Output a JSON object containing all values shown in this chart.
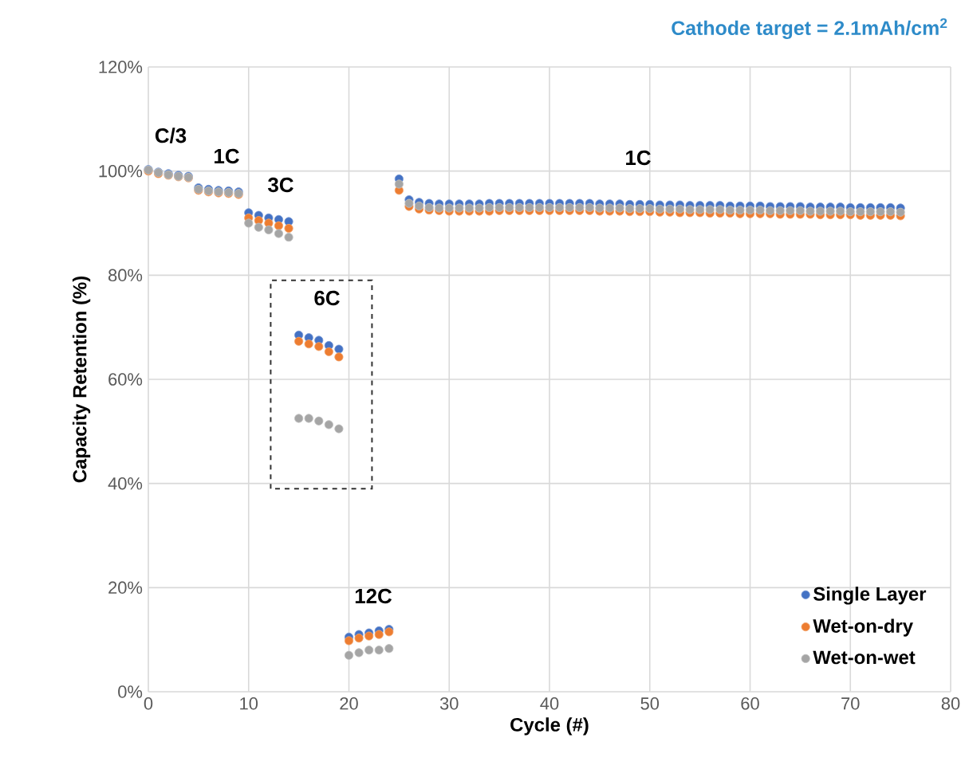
{
  "chart_data": {
    "type": "scatter",
    "title": "Cathode target = 2.1mAh/cm$^{2}$",
    "xlabel": "Cycle (#)",
    "ylabel": "Capacity Retention (%)",
    "x": [
      0,
      1,
      2,
      3,
      4,
      5,
      6,
      7,
      8,
      9,
      10,
      11,
      12,
      13,
      14,
      15,
      16,
      17,
      18,
      19,
      20,
      21,
      22,
      23,
      24,
      25,
      26,
      27,
      28,
      29,
      30,
      31,
      32,
      33,
      34,
      35,
      36,
      37,
      38,
      39,
      40,
      41,
      42,
      43,
      44,
      45,
      46,
      47,
      48,
      49,
      50,
      51,
      52,
      53,
      54,
      55,
      56,
      57,
      58,
      59,
      60,
      61,
      62,
      63,
      64,
      65,
      66,
      67,
      68,
      69,
      70,
      71,
      72,
      73,
      74,
      75
    ],
    "series": [
      {
        "name": "Single Layer",
        "color": "#4472c4",
        "values": [
          100.3,
          99.8,
          99.5,
          99.2,
          99.0,
          96.8,
          96.5,
          96.3,
          96.2,
          96.0,
          92.0,
          91.5,
          91.0,
          90.7,
          90.3,
          68.5,
          68.0,
          67.5,
          66.5,
          65.8,
          10.5,
          11.0,
          11.3,
          11.7,
          12.0,
          98.5,
          94.5,
          94.0,
          93.8,
          93.7,
          93.7,
          93.7,
          93.7,
          93.7,
          93.8,
          93.8,
          93.8,
          93.8,
          93.8,
          93.8,
          93.8,
          93.8,
          93.8,
          93.8,
          93.8,
          93.7,
          93.7,
          93.7,
          93.6,
          93.6,
          93.6,
          93.5,
          93.5,
          93.5,
          93.4,
          93.4,
          93.4,
          93.4,
          93.3,
          93.3,
          93.3,
          93.3,
          93.2,
          93.2,
          93.2,
          93.2,
          93.1,
          93.1,
          93.1,
          93.1,
          93.0,
          93.0,
          93.0,
          93.0,
          93.0,
          92.9
        ]
      },
      {
        "name": "Wet-on-dry",
        "color": "#ed7d31",
        "values": [
          100.0,
          99.5,
          99.2,
          98.9,
          98.7,
          96.3,
          96.0,
          95.8,
          95.7,
          95.5,
          91.0,
          90.5,
          90.0,
          89.5,
          89.0,
          67.3,
          66.8,
          66.3,
          65.3,
          64.3,
          9.8,
          10.3,
          10.7,
          11.0,
          11.5,
          96.3,
          93.2,
          92.7,
          92.5,
          92.4,
          92.3,
          92.3,
          92.3,
          92.3,
          92.3,
          92.4,
          92.4,
          92.4,
          92.4,
          92.4,
          92.4,
          92.4,
          92.4,
          92.4,
          92.4,
          92.3,
          92.3,
          92.3,
          92.2,
          92.2,
          92.2,
          92.1,
          92.1,
          92.0,
          92.0,
          92.0,
          91.9,
          91.9,
          91.9,
          91.8,
          91.8,
          91.8,
          91.8,
          91.7,
          91.7,
          91.7,
          91.7,
          91.6,
          91.6,
          91.6,
          91.6,
          91.5,
          91.5,
          91.5,
          91.5,
          91.4
        ]
      },
      {
        "name": "Wet-on-wet",
        "color": "#a5a5a5",
        "values": [
          100.2,
          99.7,
          99.3,
          99.0,
          98.8,
          96.5,
          96.2,
          96.0,
          95.9,
          95.7,
          90.0,
          89.2,
          88.7,
          88.0,
          87.3,
          52.5,
          52.5,
          52.0,
          51.3,
          50.5,
          7.0,
          7.5,
          8.0,
          8.0,
          8.3,
          97.5,
          93.8,
          93.3,
          93.0,
          92.9,
          92.9,
          92.9,
          92.9,
          92.9,
          93.0,
          93.0,
          93.0,
          93.0,
          93.0,
          93.0,
          93.0,
          93.0,
          93.0,
          93.0,
          93.0,
          92.9,
          92.9,
          92.9,
          92.8,
          92.8,
          92.8,
          92.7,
          92.7,
          92.7,
          92.6,
          92.6,
          92.6,
          92.6,
          92.5,
          92.5,
          92.5,
          92.5,
          92.4,
          92.4,
          92.4,
          92.4,
          92.3,
          92.3,
          92.3,
          92.3,
          92.2,
          92.2,
          92.2,
          92.2,
          92.2,
          92.1
        ]
      }
    ],
    "xlim": [
      0,
      80
    ],
    "xticks": [
      0,
      10,
      20,
      30,
      40,
      50,
      60,
      70,
      80
    ],
    "ylim": [
      0,
      120
    ],
    "yticks": [
      {
        "value": 0,
        "label": "0%"
      },
      {
        "value": 20,
        "label": "20%"
      },
      {
        "value": 40,
        "label": "40%"
      },
      {
        "value": 60,
        "label": "60%"
      },
      {
        "value": 80,
        "label": "80%"
      },
      {
        "value": 100,
        "label": "100%"
      },
      {
        "value": 120,
        "label": "120%"
      }
    ],
    "annotations": [
      "C/3",
      "1C",
      "3C",
      "6C",
      "12C",
      "1C"
    ],
    "grid": true,
    "legend": "bottom right",
    "marker": "circle"
  }
}
